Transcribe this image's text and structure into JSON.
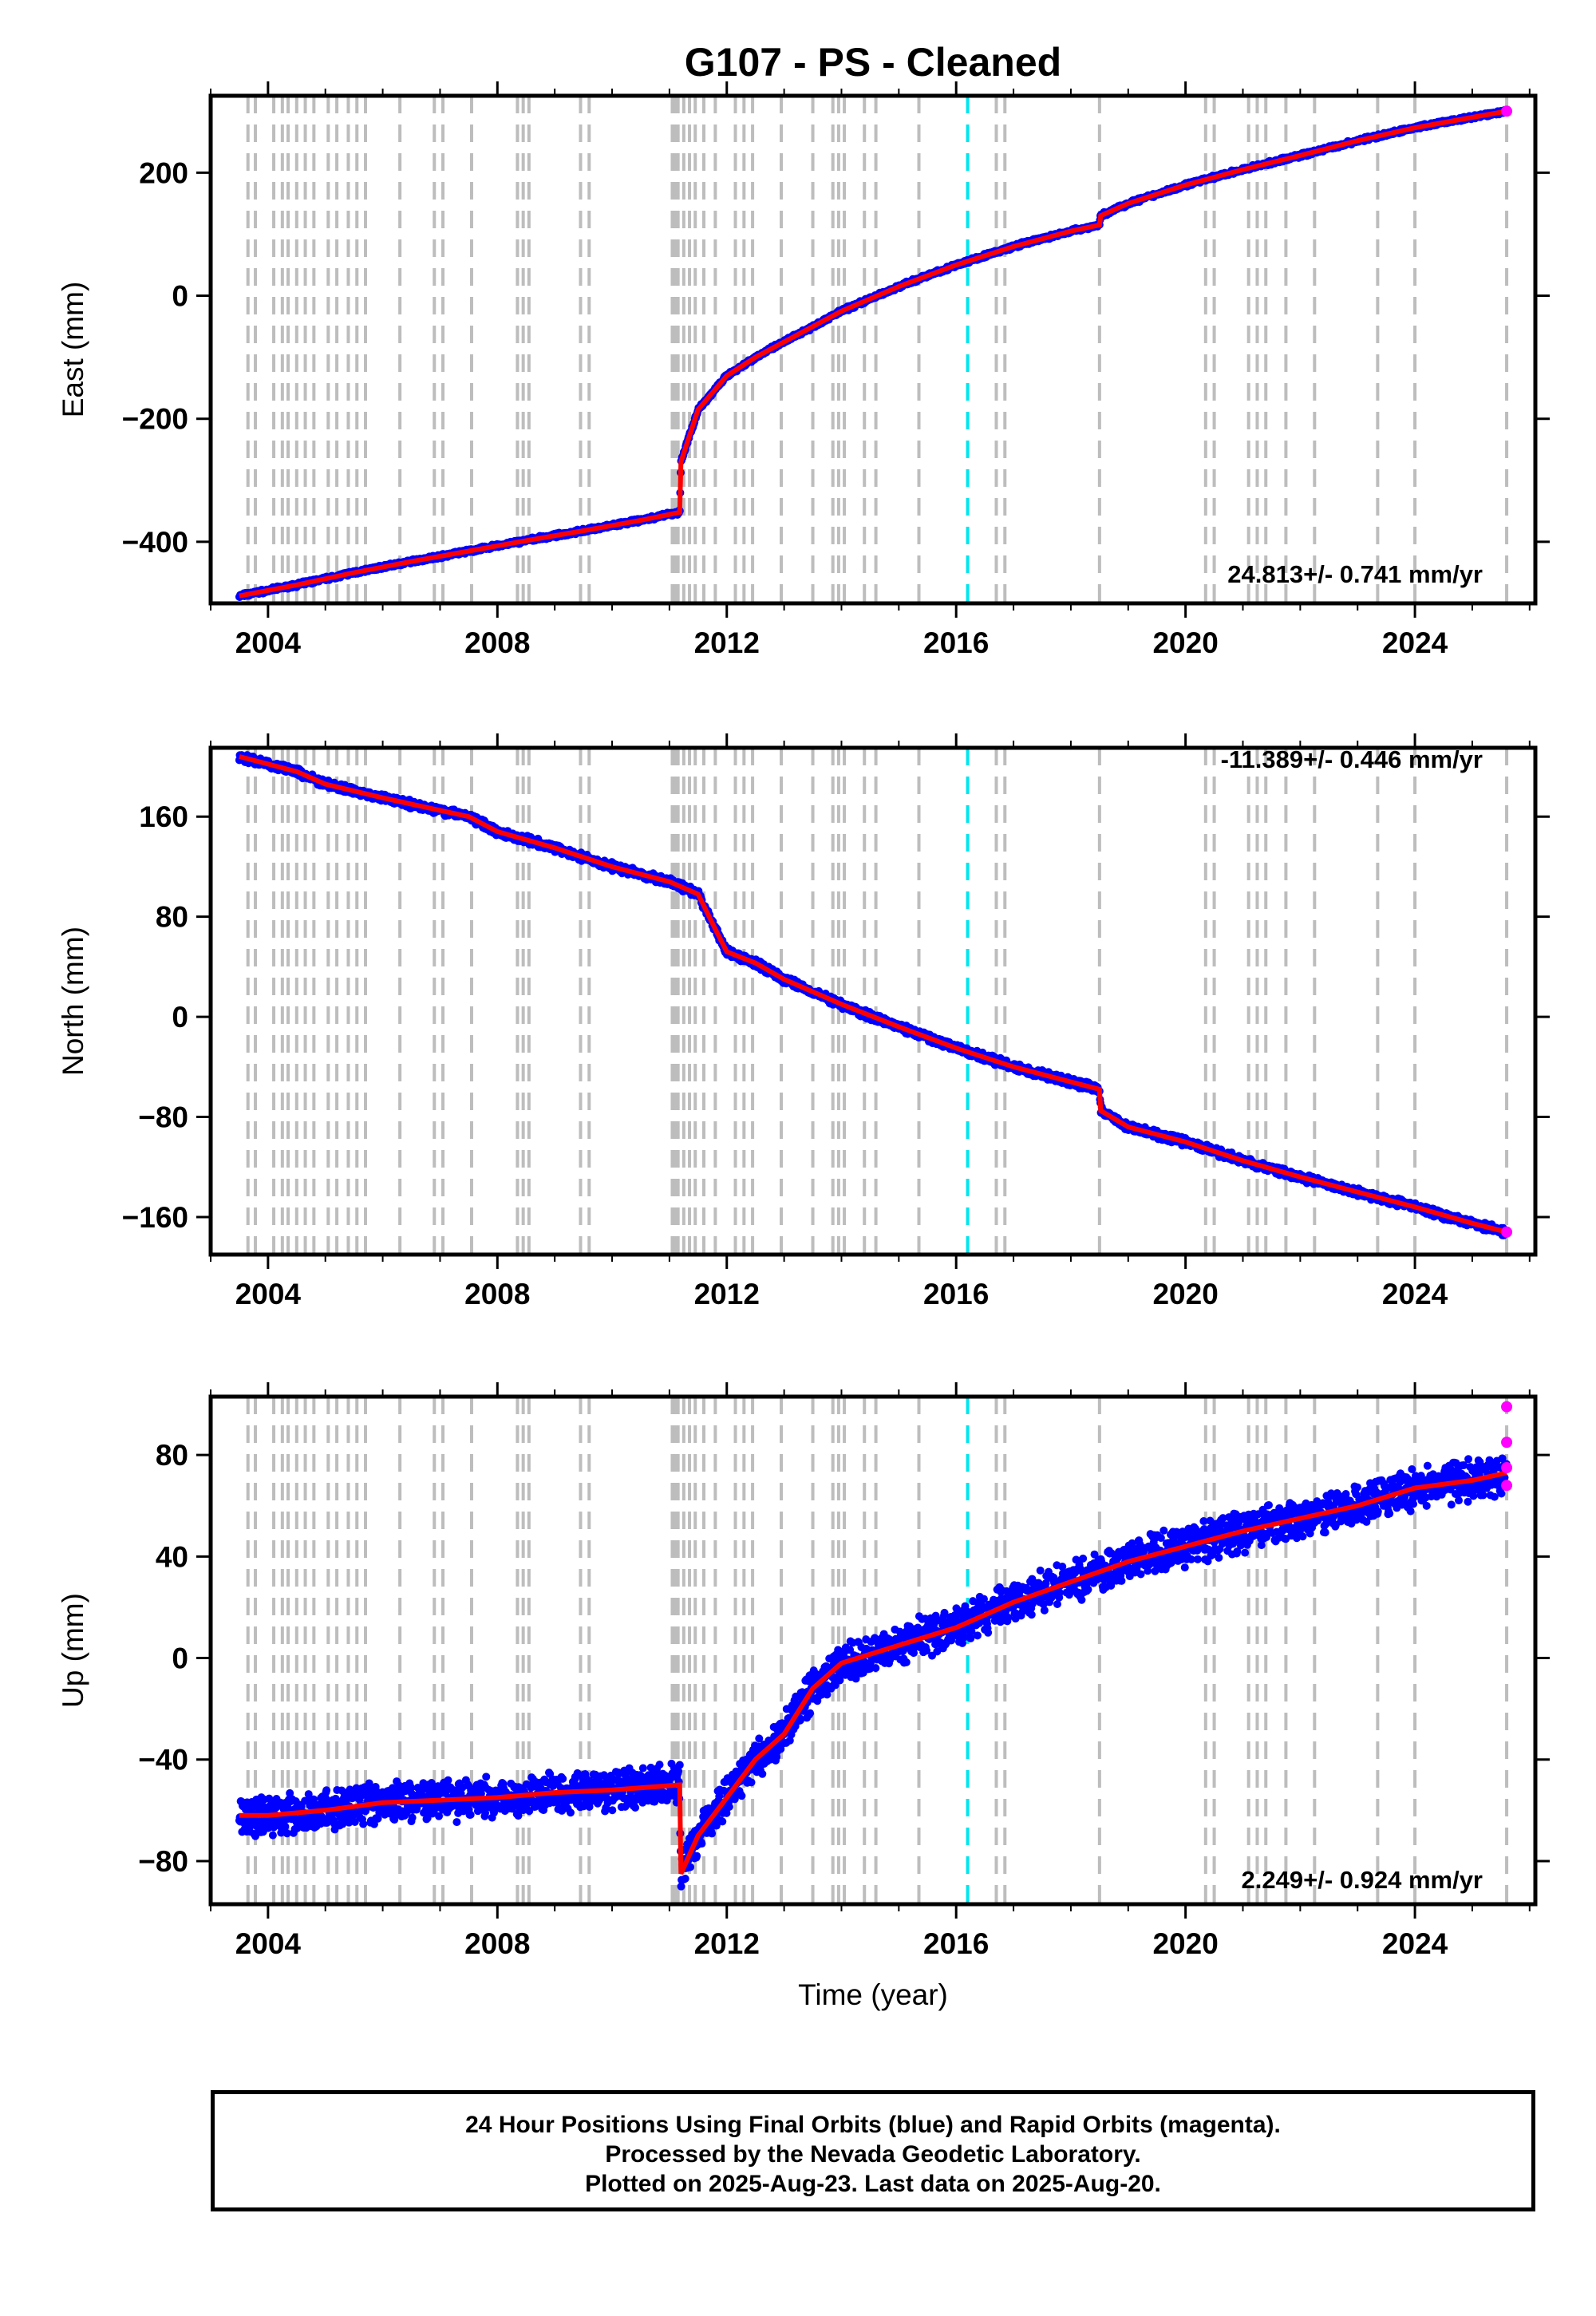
{
  "chart_data": [
    {
      "type": "scatter",
      "title": "G107  - PS - Cleaned",
      "xlabel": "",
      "ylabel": "East (mm)",
      "xlim": [
        2003.0,
        2026.1
      ],
      "ylim": [
        -500,
        325
      ],
      "x_ticks": [
        "2004",
        "2008",
        "2012",
        "2016",
        "2020",
        "2024"
      ],
      "y_ticks": [
        "200",
        "0",
        "−200",
        "−400"
      ],
      "y_tick_values": [
        200,
        0,
        -200,
        -400
      ],
      "rate_label": "24.813+/- 0.741 mm/yr",
      "series": [
        {
          "name": "Final Orbits",
          "color": "#0000ff",
          "x": [
            2003.5,
            2004.5,
            2005.5,
            2006.5,
            2007.5,
            2008.5,
            2009.5,
            2010.5,
            2011.18,
            2011.2,
            2011.5,
            2012.0,
            2012.5,
            2013.0,
            2014.0,
            2015.0,
            2016.0,
            2017.0,
            2018.0,
            2018.5,
            2018.52,
            2019.0,
            2020.0,
            2021.0,
            2022.0,
            2023.0,
            2024.0,
            2025.0,
            2025.6
          ],
          "y": [
            -488,
            -470,
            -450,
            -432,
            -415,
            -398,
            -382,
            -365,
            -352,
            -270,
            -185,
            -130,
            -100,
            -75,
            -25,
            15,
            50,
            80,
            105,
            115,
            130,
            150,
            180,
            205,
            228,
            252,
            273,
            290,
            300
          ]
        },
        {
          "name": "Rapid Orbits",
          "color": "#ff00ff",
          "x": [
            2025.6
          ],
          "y": [
            300
          ]
        }
      ]
    },
    {
      "type": "scatter",
      "xlabel": "",
      "ylabel": "North (mm)",
      "xlim": [
        2003.0,
        2026.1
      ],
      "ylim": [
        -190,
        215
      ],
      "x_ticks": [
        "2004",
        "2008",
        "2012",
        "2016",
        "2020",
        "2024"
      ],
      "y_ticks": [
        "160",
        "80",
        "0",
        "−80",
        "−160"
      ],
      "y_tick_values": [
        160,
        80,
        0,
        -80,
        -160
      ],
      "rate_label": "-11.389+/- 0.446 mm/yr",
      "series": [
        {
          "name": "Final Orbits",
          "color": "#0000ff",
          "x": [
            2003.5,
            2004.0,
            2004.5,
            2005.0,
            2006.0,
            2007.0,
            2007.5,
            2008.0,
            2009.0,
            2010.0,
            2011.0,
            2011.5,
            2011.8,
            2012.0,
            2012.5,
            2013.0,
            2014.0,
            2015.0,
            2016.0,
            2017.0,
            2018.0,
            2018.5,
            2018.52,
            2019.0,
            2020.0,
            2021.0,
            2022.0,
            2023.0,
            2024.0,
            2025.0,
            2025.6
          ],
          "y": [
            208,
            202,
            196,
            186,
            175,
            165,
            160,
            148,
            135,
            120,
            108,
            98,
            70,
            52,
            43,
            30,
            10,
            -8,
            -25,
            -40,
            -52,
            -58,
            -75,
            -88,
            -100,
            -115,
            -128,
            -140,
            -152,
            -165,
            -172
          ]
        },
        {
          "name": "Rapid Orbits",
          "color": "#ff00ff",
          "x": [
            2025.6
          ],
          "y": [
            -172
          ]
        }
      ]
    },
    {
      "type": "scatter",
      "xlabel": "Time (year)",
      "ylabel": "Up (mm)",
      "xlim": [
        2003.0,
        2026.1
      ],
      "ylim": [
        -97,
        103
      ],
      "x_ticks": [
        "2004",
        "2008",
        "2012",
        "2016",
        "2020",
        "2024"
      ],
      "y_ticks": [
        "80",
        "40",
        "0",
        "−40",
        "−80"
      ],
      "y_tick_values": [
        80,
        40,
        0,
        -40,
        -80
      ],
      "rate_label": "2.249+/- 0.924 mm/yr",
      "series": [
        {
          "name": "Final Orbits",
          "color": "#0000ff",
          "x": [
            2003.5,
            2004.0,
            2005.0,
            2006.0,
            2007.0,
            2008.0,
            2009.0,
            2010.0,
            2011.18,
            2011.2,
            2011.5,
            2012.0,
            2012.5,
            2013.0,
            2013.5,
            2014.0,
            2015.0,
            2016.0,
            2017.0,
            2018.0,
            2019.0,
            2020.0,
            2021.0,
            2022.0,
            2023.0,
            2024.0,
            2025.0,
            2025.6
          ],
          "y": [
            -62,
            -62,
            -60,
            -57,
            -56,
            -55,
            -53,
            -52,
            -50,
            -85,
            -70,
            -55,
            -40,
            -30,
            -12,
            -2,
            5,
            12,
            22,
            30,
            38,
            44,
            50,
            55,
            60,
            67,
            70,
            73
          ]
        },
        {
          "name": "Rapid Orbits",
          "color": "#ff00ff",
          "x": [
            2025.6,
            2025.6,
            2025.6,
            2025.6
          ],
          "y": [
            99,
            85,
            75,
            68
          ]
        }
      ]
    }
  ],
  "equipment_change_years": [
    2003.65,
    2003.78,
    2004.1,
    2004.25,
    2004.35,
    2004.5,
    2004.65,
    2004.8,
    2005.05,
    2005.2,
    2005.4,
    2005.55,
    2005.7,
    2006.3,
    2006.9,
    2007.05,
    2007.55,
    2008.35,
    2008.45,
    2008.55,
    2009.45,
    2009.6,
    2011.05,
    2011.1,
    2011.15,
    2011.25,
    2011.35,
    2011.45,
    2011.6,
    2011.8,
    2012.15,
    2012.3,
    2012.45,
    2012.95,
    2013.5,
    2013.85,
    2013.95,
    2014.05,
    2014.4,
    2014.6,
    2015.35,
    2016.7,
    2016.85,
    2018.5,
    2020.35,
    2020.5,
    2021.1,
    2021.25,
    2021.4,
    2021.75,
    2022.25,
    2023.35,
    2024.0,
    2025.6
  ],
  "earthquake_years": [
    2016.2
  ],
  "notes": {
    "line1": "24 Hour Positions Using Final Orbits (blue) and Rapid Orbits (magenta).",
    "line2": "Processed by the Nevada Geodetic Laboratory.",
    "line3": "Plotted on 2025-Aug-23. Last data on 2025-Aug-20."
  }
}
